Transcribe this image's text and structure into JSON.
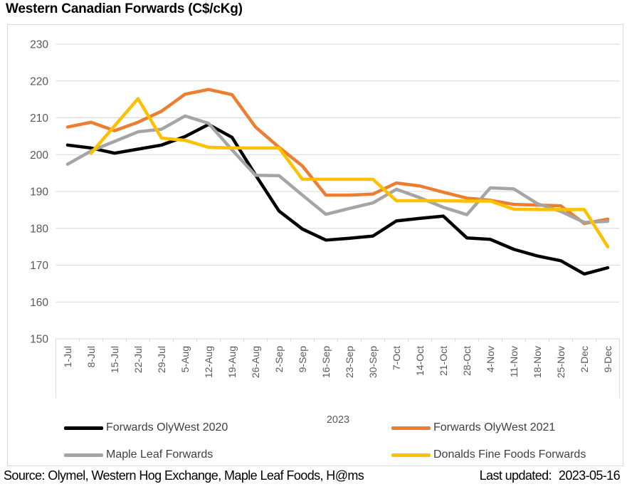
{
  "title": "Western Canadian Forwards (C$/cKg)",
  "footer": {
    "source": "Source: Olymel, Western Hog Exchange, Maple Leaf Foods, H@ms",
    "last_updated_label": "Last updated:",
    "last_updated_value": "2023-05-16"
  },
  "colors": {
    "grid": "#d9d9d9",
    "frame_border": "#d9d9d9",
    "axis_text": "#595959",
    "legend_text": "#404040",
    "series_black": "#000000",
    "series_orange": "#ED7D31",
    "series_gray": "#A5A5A5",
    "series_yellow": "#FFC000"
  },
  "chart_data": {
    "type": "line",
    "title": "Western Canadian Forwards (C$/cKg)",
    "x_axis_year": "2023",
    "xlabel": "",
    "ylabel": "",
    "ylim": [
      150,
      230
    ],
    "yticks": [
      150,
      160,
      170,
      180,
      190,
      200,
      210,
      220,
      230
    ],
    "grid": true,
    "legend_position": "bottom",
    "categories": [
      "1-Jul",
      "8-Jul",
      "15-Jul",
      "22-Jul",
      "29-Jul",
      "5-Aug",
      "12-Aug",
      "19-Aug",
      "26-Aug",
      "2-Sep",
      "9-Sep",
      "16-Sep",
      "23-Sep",
      "30-Sep",
      "7-Oct",
      "14-Oct",
      "21-Oct",
      "28-Oct",
      "4-Nov",
      "11-Nov",
      "18-Nov",
      "25-Nov",
      "2-Dec",
      "9-Dec"
    ],
    "series": [
      {
        "name": "Forwards OlyWest 2020",
        "color": "#000000",
        "values": [
          202.6,
          201.8,
          200.4,
          201.5,
          202.6,
          204.9,
          208.2,
          204.7,
          194.5,
          184.7,
          179.8,
          176.8,
          177.3,
          177.9,
          182.0,
          182.7,
          183.3,
          177.4,
          177.0,
          174.3,
          172.5,
          171.2,
          167.6,
          169.3
        ]
      },
      {
        "name": "Forwards OlyWest 2021",
        "color": "#ED7D31",
        "values": [
          207.5,
          208.8,
          206.5,
          208.8,
          211.8,
          216.4,
          217.7,
          216.3,
          207.5,
          202.0,
          196.9,
          189.0,
          189.0,
          189.3,
          192.3,
          191.5,
          189.8,
          188.2,
          187.6,
          186.5,
          186.3,
          186.1,
          181.3,
          182.5
        ]
      },
      {
        "name": "Maple Leaf Forwards",
        "color": "#A5A5A5",
        "values": [
          197.4,
          201.0,
          203.6,
          206.2,
          206.9,
          210.5,
          208.5,
          201.3,
          194.4,
          194.3,
          189.0,
          183.8,
          185.4,
          186.9,
          190.6,
          188.3,
          185.7,
          183.7,
          191.0,
          190.7,
          186.7,
          184.6,
          181.6,
          181.9
        ]
      },
      {
        "name": "Donalds Fine Foods Forwards",
        "color": "#FFC000",
        "values": [
          null,
          200.4,
          207.8,
          215.2,
          204.5,
          203.9,
          202.0,
          201.8,
          201.8,
          201.8,
          193.3,
          193.3,
          193.3,
          193.3,
          187.5,
          187.5,
          187.5,
          187.4,
          187.4,
          185.2,
          185.1,
          185.1,
          185.1,
          175.0
        ]
      }
    ]
  }
}
